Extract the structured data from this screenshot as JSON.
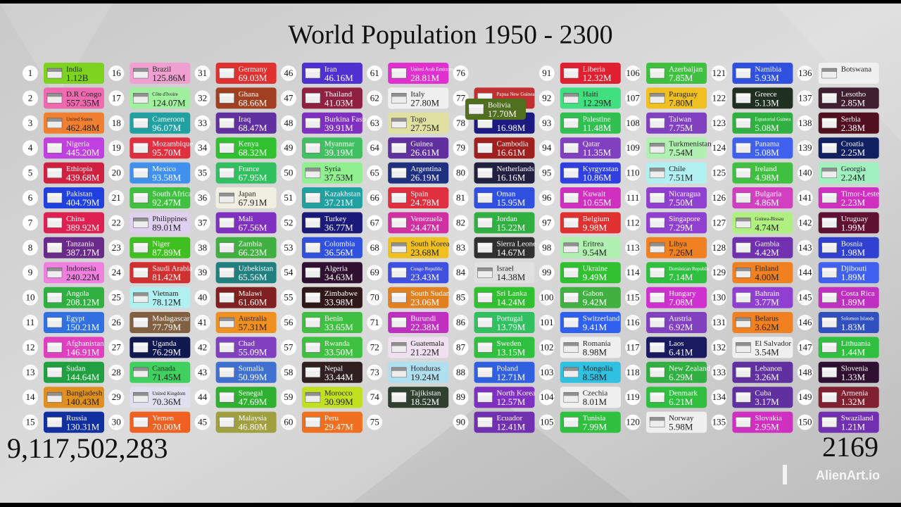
{
  "header": {
    "title": "World Population 1950 - 2300"
  },
  "total": "9,117,502,283",
  "year": "2169",
  "watermark": "AlienArt.io",
  "columns": [
    [
      {
        "rank": 1,
        "name": "India",
        "value": "1.12B",
        "color": "#7ed321"
      },
      {
        "rank": 2,
        "name": "D.R Congo",
        "value": "557.35M",
        "color": "#f06ab0"
      },
      {
        "rank": 3,
        "name": "United States",
        "value": "462.48M",
        "color": "#f08030"
      },
      {
        "rank": 4,
        "name": "Nigeria",
        "value": "445.20M",
        "color": "#c040e0"
      },
      {
        "rank": 5,
        "name": "Ethiopia",
        "value": "439.68M",
        "color": "#d02040"
      },
      {
        "rank": 6,
        "name": "Pakistan",
        "value": "404.79M",
        "color": "#2040e0"
      },
      {
        "rank": 7,
        "name": "China",
        "value": "389.92M",
        "color": "#e02050"
      },
      {
        "rank": 8,
        "name": "Tanzania",
        "value": "387.17M",
        "color": "#6a2a8a"
      },
      {
        "rank": 9,
        "name": "Indonesia",
        "value": "240.22M",
        "color": "#f080e0"
      },
      {
        "rank": 10,
        "name": "Angola",
        "value": "208.12M",
        "color": "#30b040"
      },
      {
        "rank": 11,
        "name": "Egypt",
        "value": "150.21M",
        "color": "#3070e0"
      },
      {
        "rank": 12,
        "name": "Afghanistan",
        "value": "146.91M",
        "color": "#e040c0"
      },
      {
        "rank": 13,
        "name": "Sudan",
        "value": "144.64M",
        "color": "#20a040"
      },
      {
        "rank": 14,
        "name": "Bangladesh",
        "value": "140.43M",
        "color": "#e09020"
      },
      {
        "rank": 15,
        "name": "Russia",
        "value": "130.31M",
        "color": "#1030a0"
      }
    ],
    [
      {
        "rank": 16,
        "name": "Brazil",
        "value": "125.86M",
        "color": "#f0a0d0"
      },
      {
        "rank": 17,
        "name": "Côte d'Ivoire",
        "value": "124.07M",
        "color": "#a0f0a0"
      },
      {
        "rank": 18,
        "name": "Cameroon",
        "value": "96.07M",
        "color": "#20a0a0"
      },
      {
        "rank": 19,
        "name": "Mozambique",
        "value": "95.70M",
        "color": "#e03040"
      },
      {
        "rank": 20,
        "name": "Mexico",
        "value": "93.58M",
        "color": "#4090f0"
      },
      {
        "rank": 21,
        "name": "South Africa",
        "value": "92.47M",
        "color": "#40c040"
      },
      {
        "rank": 22,
        "name": "Philippines",
        "value": "89.01M",
        "color": "#e0d0f0"
      },
      {
        "rank": 23,
        "name": "Niger",
        "value": "87.89M",
        "color": "#40c020"
      },
      {
        "rank": 24,
        "name": "Saudi Arabia",
        "value": "81.42M",
        "color": "#d03030"
      },
      {
        "rank": 25,
        "name": "Vietnam",
        "value": "78.12M",
        "color": "#b0f0f0"
      },
      {
        "rank": 26,
        "name": "Madagascar",
        "value": "77.79M",
        "color": "#806040"
      },
      {
        "rank": 27,
        "name": "Uganda",
        "value": "76.29M",
        "color": "#101850"
      },
      {
        "rank": 28,
        "name": "Canada",
        "value": "71.45M",
        "color": "#40d060"
      },
      {
        "rank": 29,
        "name": "United Kingdom",
        "value": "70.36M",
        "color": "#e0e0f0"
      },
      {
        "rank": 30,
        "name": "Yemen",
        "value": "70.00M",
        "color": "#f06020"
      }
    ],
    [
      {
        "rank": 31,
        "name": "Germany",
        "value": "69.03M",
        "color": "#e03030"
      },
      {
        "rank": 32,
        "name": "Ghana",
        "value": "68.66M",
        "color": "#a04020"
      },
      {
        "rank": 33,
        "name": "Iraq",
        "value": "68.47M",
        "color": "#6030a0"
      },
      {
        "rank": 34,
        "name": "Kenya",
        "value": "68.32M",
        "color": "#30c030"
      },
      {
        "rank": 35,
        "name": "France",
        "value": "67.95M",
        "color": "#30c060"
      },
      {
        "rank": 36,
        "name": "Japan",
        "value": "67.91M",
        "color": "#f0f0e0"
      },
      {
        "rank": 37,
        "name": "Mali",
        "value": "67.56M",
        "color": "#8030c0"
      },
      {
        "rank": 38,
        "name": "Zambia",
        "value": "66.23M",
        "color": "#40b040"
      },
      {
        "rank": 39,
        "name": "Uzbekistan",
        "value": "65.56M",
        "color": "#208080"
      },
      {
        "rank": 40,
        "name": "Malawi",
        "value": "61.60M",
        "color": "#802020"
      },
      {
        "rank": 41,
        "name": "Australia",
        "value": "57.31M",
        "color": "#f09020"
      },
      {
        "rank": 42,
        "name": "Chad",
        "value": "55.09M",
        "color": "#8040c0"
      },
      {
        "rank": 43,
        "name": "Somalia",
        "value": "50.99M",
        "color": "#4070d0"
      },
      {
        "rank": 44,
        "name": "Senegal",
        "value": "47.69M",
        "color": "#30b030"
      },
      {
        "rank": 45,
        "name": "Malaysia",
        "value": "46.80M",
        "color": "#a0a040"
      }
    ],
    [
      {
        "rank": 46,
        "name": "Iran",
        "value": "46.16M",
        "color": "#5030d0"
      },
      {
        "rank": 47,
        "name": "Thailand",
        "value": "41.03M",
        "color": "#902040"
      },
      {
        "rank": 48,
        "name": "Burkina Faso",
        "value": "39.91M",
        "color": "#8030c0"
      },
      {
        "rank": 49,
        "name": "Myanmar",
        "value": "39.19M",
        "color": "#40c060"
      },
      {
        "rank": 50,
        "name": "Syria",
        "value": "37.53M",
        "color": "#90f090"
      },
      {
        "rank": 51,
        "name": "Kazakhstan",
        "value": "37.21M",
        "color": "#20a0a0"
      },
      {
        "rank": 52,
        "name": "Turkey",
        "value": "36.77M",
        "color": "#1a1a7a"
      },
      {
        "rank": 53,
        "name": "Colombia",
        "value": "36.56M",
        "color": "#3050e0"
      },
      {
        "rank": 54,
        "name": "Algeria",
        "value": "34.63M",
        "color": "#301030"
      },
      {
        "rank": 55,
        "name": "Zimbabwe",
        "value": "33.98M",
        "color": "#301818"
      },
      {
        "rank": 56,
        "name": "Benin",
        "value": "33.65M",
        "color": "#40c040"
      },
      {
        "rank": 57,
        "name": "Rwanda",
        "value": "33.50M",
        "color": "#40c040"
      },
      {
        "rank": 58,
        "name": "Nepal",
        "value": "33.44M",
        "color": "#302020"
      },
      {
        "rank": 59,
        "name": "Morocco",
        "value": "30.99M",
        "color": "#c0e020"
      },
      {
        "rank": 60,
        "name": "Peru",
        "value": "29.47M",
        "color": "#f07020"
      }
    ],
    [
      {
        "rank": 61,
        "name": "United Arab Emirates",
        "value": "28.81M",
        "color": "#e030d0"
      },
      {
        "rank": 62,
        "name": "Italy",
        "value": "27.80M",
        "color": "#f0f0f0"
      },
      {
        "rank": 63,
        "name": "Togo",
        "value": "27.75M",
        "color": "#e0e0a0"
      },
      {
        "rank": 64,
        "name": "Guinea",
        "value": "26.61M",
        "color": "#6030a0"
      },
      {
        "rank": 65,
        "name": "Argentina",
        "value": "26.19M",
        "color": "#203080"
      },
      {
        "rank": 66,
        "name": "Spain",
        "value": "24.78M",
        "color": "#e03040"
      },
      {
        "rank": 67,
        "name": "Venezuela",
        "value": "24.47M",
        "color": "#d030a0"
      },
      {
        "rank": 68,
        "name": "South Korea",
        "value": "23.68M",
        "color": "#f0c020"
      },
      {
        "rank": 69,
        "name": "Congo Republic",
        "value": "23.43M",
        "color": "#4050e0"
      },
      {
        "rank": 70,
        "name": "South Sudan",
        "value": "23.06M",
        "color": "#e08020"
      },
      {
        "rank": 71,
        "name": "Burundi",
        "value": "22.38M",
        "color": "#c030c0"
      },
      {
        "rank": 72,
        "name": "Guatemala",
        "value": "21.22M",
        "color": "#f0e0f0"
      },
      {
        "rank": 73,
        "name": "Honduras",
        "value": "19.24M",
        "color": "#b0e0f0"
      },
      {
        "rank": 74,
        "name": "Tajikistan",
        "value": "18.52M",
        "color": "#304030"
      },
      {
        "rank": 75
      }
    ],
    [
      {
        "rank": 76
      },
      {
        "rank": 77,
        "name": "Papua New Guinea",
        "color": "#c03030"
      },
      {
        "rank": 78,
        "value": "16.98M",
        "color": "#1a1a80"
      },
      {
        "rank": 79,
        "name": "Cambodia",
        "value": "16.61M",
        "color": "#a02020"
      },
      {
        "rank": 80,
        "name": "Netherlands",
        "value": "16.16M",
        "color": "#202040"
      },
      {
        "rank": 81,
        "name": "Oman",
        "value": "15.95M",
        "color": "#3050e0"
      },
      {
        "rank": 82,
        "name": "Jordan",
        "value": "15.22M",
        "color": "#30b040"
      },
      {
        "rank": 83,
        "name": "Sierra Leone",
        "value": "14.67M",
        "color": "#303030"
      },
      {
        "rank": 84,
        "name": "Israel",
        "value": "14.38M",
        "color": "#e0e0e0"
      },
      {
        "rank": 85,
        "name": "Sri Lanka",
        "value": "14.24M",
        "color": "#30c030"
      },
      {
        "rank": 86,
        "name": "Portugal",
        "value": "13.79M",
        "color": "#30c060"
      },
      {
        "rank": 87,
        "name": "Sweden",
        "value": "13.15M",
        "color": "#30c040"
      },
      {
        "rank": 88,
        "name": "Poland",
        "value": "12.71M",
        "color": "#3060e0"
      },
      {
        "rank": 89,
        "name": "North Korea",
        "value": "12.57M",
        "color": "#8030c0"
      },
      {
        "rank": 90,
        "name": "Ecuador",
        "value": "12.41M",
        "color": "#7030b0"
      }
    ],
    [
      {
        "rank": 91,
        "name": "Liberia",
        "value": "12.32M",
        "color": "#e02030"
      },
      {
        "rank": 92,
        "name": "Haiti",
        "value": "12.29M",
        "color": "#40e080"
      },
      {
        "rank": 93,
        "name": "Palestine",
        "value": "11.48M",
        "color": "#30c050"
      },
      {
        "rank": 94,
        "name": "Qatar",
        "value": "11.35M",
        "color": "#8040c0"
      },
      {
        "rank": 95,
        "name": "Kyrgyzstan",
        "value": "10.86M",
        "color": "#3040e0"
      },
      {
        "rank": 96,
        "name": "Kuwait",
        "value": "10.65M",
        "color": "#d030c0"
      },
      {
        "rank": 97,
        "name": "Belgium",
        "value": "9.98M",
        "color": "#e03030"
      },
      {
        "rank": 98,
        "name": "Eritrea",
        "value": "9.54M",
        "color": "#b0f0b0"
      },
      {
        "rank": 99,
        "name": "Ukraine",
        "value": "9.49M",
        "color": "#30c030"
      },
      {
        "rank": 100,
        "name": "Gabon",
        "value": "9.42M",
        "color": "#40b040"
      },
      {
        "rank": 101,
        "name": "Switzerland",
        "value": "9.41M",
        "color": "#3060f0"
      },
      {
        "rank": 102,
        "name": "Romania",
        "value": "8.98M",
        "color": "#f0f0f0"
      },
      {
        "rank": 103,
        "name": "Mongolia",
        "value": "8.58M",
        "color": "#30c0e0"
      },
      {
        "rank": 104,
        "name": "Czechia",
        "value": "8.01M",
        "color": "#f0f0f0"
      },
      {
        "rank": 105,
        "name": "Tunisia",
        "value": "7.99M",
        "color": "#30c040"
      }
    ],
    [
      {
        "rank": 106,
        "name": "Azerbaijan",
        "value": "7.85M",
        "color": "#40c040"
      },
      {
        "rank": 107,
        "name": "Paraguay",
        "value": "7.80M",
        "color": "#f0c020"
      },
      {
        "rank": 108,
        "name": "Taiwan",
        "value": "7.75M",
        "color": "#8040c0"
      },
      {
        "rank": 109,
        "name": "Turkmenistan",
        "value": "7.54M",
        "color": "#b0f0b0"
      },
      {
        "rank": 110,
        "name": "Chile",
        "value": "7.51M",
        "color": "#b0f0f0"
      },
      {
        "rank": 111,
        "name": "Nicaragua",
        "value": "7.50M",
        "color": "#9040d0"
      },
      {
        "rank": 112,
        "name": "Singapore",
        "value": "7.29M",
        "color": "#9040d0"
      },
      {
        "rank": 113,
        "name": "Libya",
        "value": "7.26M",
        "color": "#f08020"
      },
      {
        "rank": 114,
        "name": "Dominican Republic",
        "value": "7.14M",
        "color": "#30c040"
      },
      {
        "rank": 115,
        "name": "Hungary",
        "value": "7.08M",
        "color": "#d030d0"
      },
      {
        "rank": 116,
        "name": "Austria",
        "value": "6.92M",
        "color": "#8040c0"
      },
      {
        "rank": 117,
        "name": "Laos",
        "value": "6.41M",
        "color": "#1a1a60"
      },
      {
        "rank": 118,
        "name": "New Zealand",
        "value": "6.29M",
        "color": "#30b040"
      },
      {
        "rank": 119,
        "name": "Denmark",
        "value": "6.21M",
        "color": "#30c040"
      },
      {
        "rank": 120,
        "name": "Norway",
        "value": "5.98M",
        "color": "#f0f0f0"
      }
    ],
    [
      {
        "rank": 121,
        "name": "Namibia",
        "value": "5.93M",
        "color": "#3050e0"
      },
      {
        "rank": 122,
        "name": "Greece",
        "value": "5.13M",
        "color": "#203020"
      },
      {
        "rank": 123,
        "name": "Equatorial Guinea",
        "value": "5.08M",
        "color": "#30b040"
      },
      {
        "rank": 124,
        "name": "Panama",
        "value": "5.08M",
        "color": "#4060f0"
      },
      {
        "rank": 125,
        "name": "Ireland",
        "value": "4.98M",
        "color": "#40c040"
      },
      {
        "rank": 126,
        "name": "Bulgaria",
        "value": "4.86M",
        "color": "#d040c0"
      },
      {
        "rank": 127,
        "name": "Guinea-Bissau",
        "value": "4.74M",
        "color": "#b0f080"
      },
      {
        "rank": 128,
        "name": "Gambia",
        "value": "4.42M",
        "color": "#7030b0"
      },
      {
        "rank": 129,
        "name": "Finland",
        "value": "4.00M",
        "color": "#f08020"
      },
      {
        "rank": 130,
        "name": "Bahrain",
        "value": "3.77M",
        "color": "#9040d0"
      },
      {
        "rank": 131,
        "name": "Belarus",
        "value": "3.62M",
        "color": "#f08020"
      },
      {
        "rank": 132,
        "name": "El Salvador",
        "value": "3.54M",
        "color": "#f0f0f0"
      },
      {
        "rank": 133,
        "name": "Lebanon",
        "value": "3.26M",
        "color": "#6030a0"
      },
      {
        "rank": 134,
        "name": "Cuba",
        "value": "3.17M",
        "color": "#6030a0"
      },
      {
        "rank": 135,
        "name": "Slovakia",
        "value": "2.95M",
        "color": "#d030c0"
      }
    ],
    [
      {
        "rank": 136,
        "name": "Botswana",
        "color": "#f0f0f0"
      },
      {
        "rank": 137,
        "name": "Lesotho",
        "value": "2.85M",
        "color": "#402030"
      },
      {
        "rank": 138,
        "name": "Serbia",
        "value": "2.38M",
        "color": "#501020"
      },
      {
        "rank": 139,
        "name": "Croatia",
        "value": "2.25M",
        "color": "#102060"
      },
      {
        "rank": 140,
        "name": "Georgia",
        "value": "2.24M",
        "color": "#a0f0c0"
      },
      {
        "rank": 141,
        "name": "Timor-Leste",
        "value": "2.23M",
        "color": "#d030c0"
      },
      {
        "rank": 142,
        "name": "Uruguay",
        "value": "1.99M",
        "color": "#601030"
      },
      {
        "rank": 143,
        "name": "Bosnia",
        "value": "1.98M",
        "color": "#3040d0"
      },
      {
        "rank": 144,
        "name": "Djibouti",
        "value": "1.89M",
        "color": "#4060f0"
      },
      {
        "rank": 145,
        "name": "Costa Rica",
        "value": "1.89M",
        "color": "#c030c0"
      },
      {
        "rank": 146,
        "name": "Solomon Islands",
        "value": "1.83M",
        "color": "#3050c0"
      },
      {
        "rank": 147,
        "name": "Lithuania",
        "value": "1.44M",
        "color": "#30c040"
      },
      {
        "rank": 148,
        "name": "Slovenia",
        "value": "1.33M",
        "color": "#301030"
      },
      {
        "rank": 149,
        "name": "Armenia",
        "value": "1.32M",
        "color": "#802030"
      },
      {
        "rank": 150,
        "name": "Swaziland",
        "value": "1.21M",
        "color": "#7030b0"
      }
    ]
  ],
  "moving": {
    "name": "Bolivia",
    "value": "17.70M",
    "color": "#507020"
  }
}
